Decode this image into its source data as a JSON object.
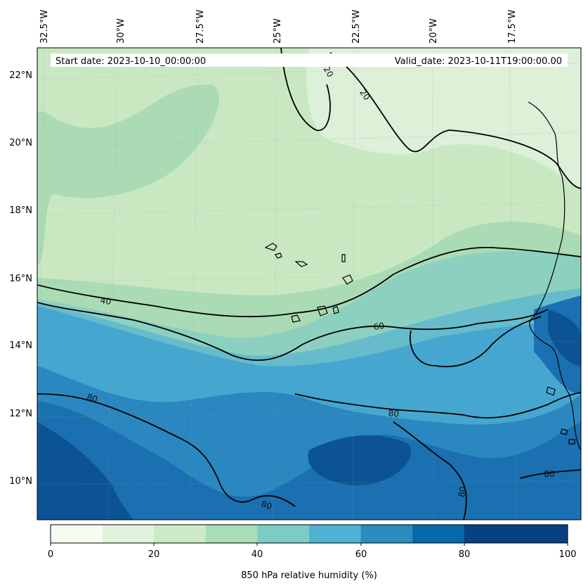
{
  "header": {
    "start_date": "Start date: 2023-10-10_00:00:00",
    "valid_date": "Valid_date: 2023-10-11T19:00:00.00"
  },
  "axes": {
    "lon_labels": [
      "32.5°W",
      "30°W",
      "27.5°W",
      "25°W",
      "22.5°W",
      "20°W",
      "17.5°W"
    ],
    "lat_labels": [
      "22°N",
      "20°N",
      "18°N",
      "16°N",
      "14°N",
      "12°N",
      "10°N"
    ]
  },
  "contour_labels": [
    "20",
    "20",
    "40",
    "60",
    "80",
    "80",
    "80",
    "80",
    "80"
  ],
  "colorbar": {
    "label": "850 hPa relative humidity (%)",
    "ticks": [
      "0",
      "20",
      "40",
      "60",
      "80",
      "100"
    ],
    "range": [
      0,
      100
    ],
    "colors": [
      "#f7fcf0",
      "#e0f3db",
      "#ccebc5",
      "#a8ddb5",
      "#7bccc4",
      "#4eb3d3",
      "#2b8cbe",
      "#0868ac",
      "#084081"
    ]
  },
  "map_colors": {
    "rh_10_20": "#ddf0d8",
    "rh_20_30": "#c9e8c2",
    "rh_30_40": "#aadbb5",
    "rh_40_50": "#8cd0c0",
    "rh_50_60": "#66bccb",
    "rh_60_70": "#45a6d0",
    "rh_70_80": "#2a87bf",
    "rh_80_90": "#1a70b0",
    "rh_90_100": "#0b5394"
  }
}
